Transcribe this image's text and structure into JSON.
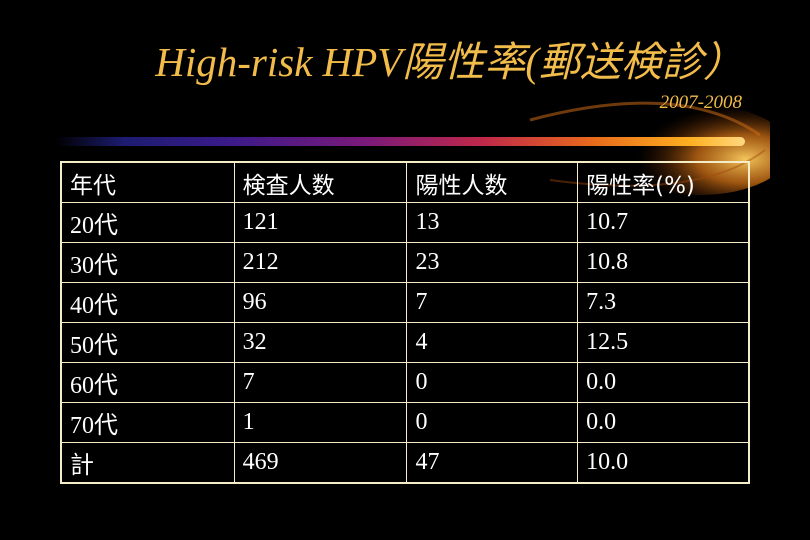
{
  "slide": {
    "title": "High-risk HPV陽性率(郵送検診）",
    "subtitle": "2007-2008"
  },
  "table": {
    "headers": [
      "年代",
      "検査人数",
      "陽性人数",
      "陽性率(%)"
    ],
    "rows": [
      [
        "20代",
        "121",
        "13",
        "10.7"
      ],
      [
        "30代",
        "212",
        "23",
        "10.8"
      ],
      [
        "40代",
        "96",
        "7",
        "7.3"
      ],
      [
        "50代",
        "32",
        "4",
        "12.5"
      ],
      [
        "60代",
        "7",
        "0",
        "0.0"
      ],
      [
        "70代",
        "1",
        "0",
        "0.0"
      ],
      [
        "計",
        "469",
        "47",
        "10.0"
      ]
    ]
  },
  "colors": {
    "background": "#000000",
    "title": "#f2bc4a",
    "table_text": "#ffffff",
    "table_border": "#f5ecc8"
  }
}
